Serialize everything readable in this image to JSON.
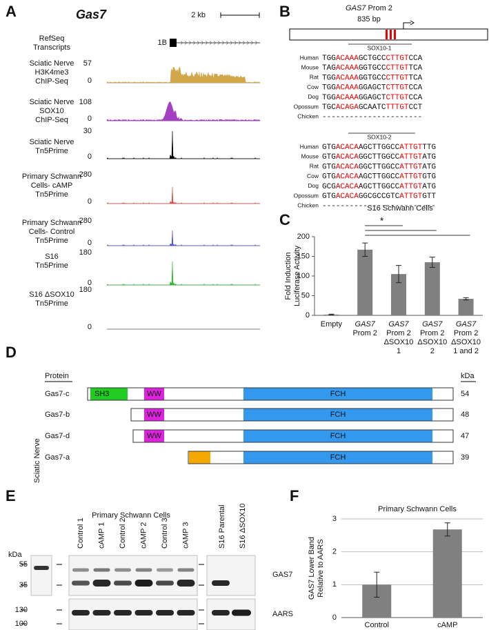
{
  "panel_a": {
    "letter": "A",
    "gene": "Gas7",
    "scale": "2 kb",
    "transcript_label": [
      "RefSeq",
      "Transcripts"
    ],
    "exon": "1B",
    "tracks": [
      {
        "label": [
          "Sciatic Nerve",
          "H3K4me3",
          "ChIP-Seq"
        ],
        "max": 57,
        "min": 0
      },
      {
        "label": [
          "Sciatic Nerve",
          "SOX10",
          "ChIP-Seq"
        ],
        "max": 108,
        "min": 0
      },
      {
        "label": [
          "Sciatic Nerve",
          "Tn5Prime"
        ],
        "max": 30,
        "min": 0
      },
      {
        "label": [
          "Primary Schwann",
          "Cells- cAMP",
          "Tn5Prime"
        ],
        "max": 280,
        "min": 0
      },
      {
        "label": [
          "Primary Schwann",
          "Cells- Control",
          "Tn5Prime"
        ],
        "max": 280,
        "min": 0
      },
      {
        "label": [
          "S16",
          "Tn5Prime"
        ],
        "max": 180,
        "min": 0
      },
      {
        "label": [
          "S16 ΔSOX10",
          "Tn5Prime"
        ],
        "max": 180,
        "min": 0
      }
    ]
  },
  "panel_b": {
    "letter": "B",
    "gene": "GAS7",
    "promoter": "Prom 2",
    "length": "835 bp",
    "alignments": [
      {
        "name": "SOX10-1",
        "rows": [
          {
            "species": "Human",
            "segments": [
              "TGG",
              "ACAAA",
              "GCTGCC",
              "CTTGT",
              "CCA"
            ]
          },
          {
            "species": "Mouse",
            "segments": [
              "TAG",
              "ACAAA",
              "GGTGCC",
              "CTTGT",
              "TCA"
            ]
          },
          {
            "species": "Rat",
            "segments": [
              "TGG",
              "ACAAA",
              "GGTGCC",
              "CTTGT",
              "TCA"
            ]
          },
          {
            "species": "Cow",
            "segments": [
              "TGG",
              "ACAAA",
              "GGAGCT",
              "CTTGT",
              "CCA"
            ]
          },
          {
            "species": "Dog",
            "segments": [
              "TGG",
              "ACAAA",
              "GGAGCT",
              "CTTGT",
              "CCA"
            ]
          },
          {
            "species": "Opossum",
            "segments": [
              "TGC",
              "ACAGA",
              "GCAATC",
              "TTTGT",
              "CCT"
            ]
          },
          {
            "species": "Chicken",
            "segments": [
              "----------------------"
            ]
          }
        ]
      },
      {
        "name": "SOX10-2",
        "rows": [
          {
            "species": "Human",
            "segments": [
              "GTG",
              "ACACA",
              "AGCTTGGCC",
              "ATTGT",
              "TTG"
            ]
          },
          {
            "species": "Mouse",
            "segments": [
              "GTG",
              "ACACA",
              "GGCTTGGCC",
              "ATTGT",
              "ATG"
            ]
          },
          {
            "species": "Rat",
            "segments": [
              "GTG",
              "ACACA",
              "GGCTTGGCC",
              "ATTGT",
              "ATG"
            ]
          },
          {
            "species": "Cow",
            "segments": [
              "GTG",
              "ACACA",
              "AGCTTGGCC",
              "ATTGT",
              "GTG"
            ]
          },
          {
            "species": "Dog",
            "segments": [
              "GCG",
              "ACACA",
              "AGCTTGGCC",
              "ATTGT",
              "ATG"
            ]
          },
          {
            "species": "Opossum",
            "segments": [
              "GTG",
              "ACACA",
              "GGCGCCGTC",
              "ATTGT",
              "GTT"
            ]
          },
          {
            "species": "Chicken",
            "segments": [
              "-------------------------"
            ]
          }
        ]
      }
    ]
  },
  "panel_d": {
    "letter": "D",
    "protein_header": "Protein",
    "kda_header": "kDa",
    "rows": [
      {
        "name": "Gas7-c",
        "kda": 54,
        "domains": [
          "SH3",
          "WW",
          "FCH"
        ]
      },
      {
        "name": "Gas7-b",
        "kda": 48,
        "domains": [
          "WW",
          "FCH"
        ]
      },
      {
        "name": "Gas7-d",
        "kda": 47,
        "domains": [
          "WW",
          "FCH"
        ]
      },
      {
        "name": "Gas7-a",
        "kda": 39,
        "domains": [
          "FCH"
        ]
      }
    ]
  },
  "panel_e": {
    "letter": "E",
    "sciatic": "Sciatic Nerve",
    "group": "Primary Schwann Cells",
    "lanes": [
      "Control 1",
      "cAMP 1",
      "Control 2",
      "cAMP 2",
      "Control 3",
      "cAMP 3"
    ],
    "s16_lanes": [
      "S16 Parental",
      "S16 ΔSOX10"
    ],
    "kda": "kDa",
    "upper_markers": [
      55,
      35
    ],
    "lower_markers": [
      130,
      100
    ],
    "upper_blot": "GAS7",
    "lower_blot": "AARS"
  },
  "chart_data": [
    {
      "type": "bar",
      "panel": "C",
      "title": "S16 Schwann Cells",
      "y_label": [
        "Fold Induction",
        "Luciferase Activity"
      ],
      "categories": [
        [
          "Empty"
        ],
        [
          "GAS7",
          "Prom 2"
        ],
        [
          "GAS7",
          "Prom 2",
          "ΔSOX10",
          "1"
        ],
        [
          "GAS7",
          "Prom 2",
          "ΔSOX10",
          "2"
        ],
        [
          "GAS7",
          "Prom 2",
          "ΔSOX10",
          "1 and 2"
        ]
      ],
      "values": [
        2,
        167,
        105,
        135,
        42
      ],
      "errors": [
        1,
        17,
        22,
        13,
        3
      ],
      "color": "#808080",
      "ylim": [
        0,
        200
      ],
      "yticks": [
        0,
        50,
        100,
        150,
        200
      ],
      "grid": false,
      "annotation": "*"
    },
    {
      "type": "bar",
      "panel": "F",
      "title": "Primary Schwann Cells",
      "y_label": [
        "GAS7 Lower Band",
        "Relative to AARS"
      ],
      "categories": [
        [
          "Control"
        ],
        [
          "cAMP"
        ]
      ],
      "values": [
        1.0,
        2.68
      ],
      "errors": [
        0.38,
        0.2
      ],
      "color": "#808080",
      "ylim": [
        0,
        3
      ],
      "yticks": [
        0,
        1,
        2,
        3
      ],
      "grid": true
    }
  ]
}
